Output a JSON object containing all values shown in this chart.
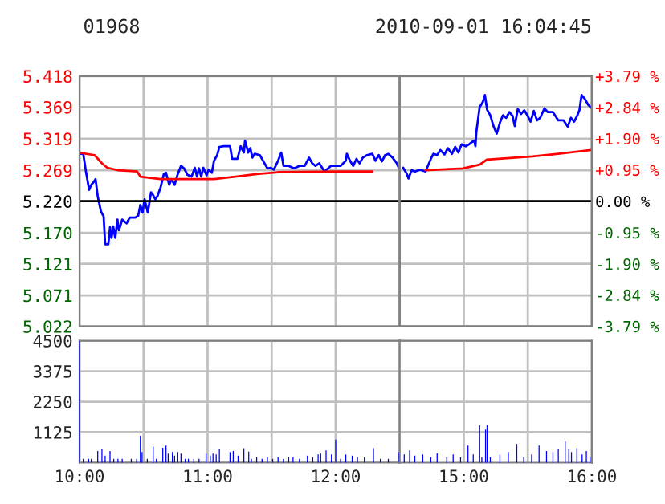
{
  "chart_data": [
    {
      "type": "line",
      "title": "01968",
      "xlim": [
        10,
        12.5
      ],
      "xticks": [
        10,
        10.5,
        11,
        11.5,
        12,
        12.5
      ],
      "ylim": [
        5.022,
        5.418
      ],
      "yticks": [
        5.022,
        5.071,
        5.121,
        {
          "value": 5.17,
          "label": "5.170"
        },
        {
          "value": 5.22,
          "label": "5.220"
        },
        5.269,
        5.319,
        5.369,
        5.418
      ],
      "tick_labels": "y",
      "grid": true,
      "ref_lines": [
        {
          "axis": "y",
          "value": 5.22,
          "color": "#000000"
        }
      ],
      "series": [
        {
          "color": "#0000ff",
          "x": [
            10,
            10.029,
            10.05,
            10.075,
            10.092,
            10.113,
            10.125,
            10.142,
            10.167,
            10.188,
            10.2,
            10.225,
            10.238,
            10.25,
            10.263,
            10.279,
            10.296,
            10.308,
            10.333,
            10.367,
            10.392,
            10.433,
            10.458,
            10.475,
            10.492,
            10.508,
            10.533,
            10.558,
            10.571,
            10.592,
            10.608,
            10.633,
            10.658,
            10.675,
            10.7,
            10.717,
            10.742,
            10.767,
            10.792,
            10.817,
            10.842,
            10.875,
            10.9,
            10.917,
            10.933,
            10.95,
            10.967,
            10.992,
            11.008,
            11.033,
            11.05,
            11.075,
            11.092,
            11.125,
            11.175,
            11.192,
            11.233,
            11.258,
            11.283,
            11.292,
            11.317,
            11.333,
            11.35,
            11.367,
            11.408,
            11.433,
            11.467,
            11.492,
            11.517,
            11.55,
            11.575,
            11.592,
            11.633,
            11.675,
            11.717,
            11.758,
            11.792,
            11.817,
            11.842,
            11.872,
            11.913,
            11.963,
            12.038,
            12.079,
            12.087,
            12.112,
            12.137,
            12.162,
            12.187,
            12.212,
            12.245,
            12.286,
            12.311,
            12.336,
            12.361,
            12.386,
            12.411,
            12.444,
            12.477,
            12.494
          ],
          "values": [
            5.295,
            5.295,
            5.267,
            5.238,
            5.246,
            5.251,
            5.255,
            5.228,
            5.204,
            5.196,
            5.152,
            5.152,
            5.179,
            5.162,
            5.18,
            5.162,
            5.191,
            5.174,
            5.191,
            5.185,
            5.194,
            5.194,
            5.197,
            5.214,
            5.202,
            5.223,
            5.202,
            5.234,
            5.231,
            5.223,
            5.228,
            5.242,
            5.263,
            5.265,
            5.246,
            5.255,
            5.246,
            5.263,
            5.276,
            5.272,
            5.262,
            5.259,
            5.273,
            5.259,
            5.272,
            5.259,
            5.273,
            5.261,
            5.27,
            5.265,
            5.284,
            5.293,
            5.306,
            5.307,
            5.307,
            5.287,
            5.287,
            5.307,
            5.297,
            5.316,
            5.297,
            5.304,
            5.289,
            5.295,
            5.293,
            5.284,
            5.272,
            5.273,
            5.27,
            5.284,
            5.297,
            5.276,
            5.276,
            5.272,
            5.276,
            5.276,
            5.289,
            5.28,
            5.276,
            5.28,
            5.267,
            5.276,
            5.276,
            5.284,
            5.295,
            5.284,
            5.276,
            5.287,
            5.28,
            5.289,
            5.293,
            5.295,
            5.284,
            5.293,
            5.283,
            5.293,
            5.295,
            5.289,
            5.28,
            5.272
          ]
        },
        {
          "color": "#ff0000",
          "x": [
            10,
            10.05,
            10.117,
            10.175,
            10.217,
            10.3,
            10.45,
            10.475,
            10.55,
            10.633,
            11.05,
            11.217,
            11.383,
            11.55,
            12.008,
            12.286
          ],
          "values": [
            5.297,
            5.295,
            5.293,
            5.28,
            5.273,
            5.269,
            5.267,
            5.259,
            5.257,
            5.255,
            5.255,
            5.259,
            5.263,
            5.266,
            5.267,
            5.267
          ]
        }
      ]
    },
    {
      "type": "line",
      "subtitle": "2010-09-01 16:04:45",
      "xlim": [
        14.5,
        16
      ],
      "xticks": [
        15,
        15.5,
        16
      ],
      "ylim": [
        5.022,
        5.418
      ],
      "yticks": [
        5.022,
        5.071,
        5.121,
        5.17,
        5.22,
        5.269,
        5.319,
        5.369,
        5.418
      ],
      "y2lim": [
        -3.79,
        3.79
      ],
      "y2ticks": [
        {
          "value": -3.79,
          "label": "-3.79 %"
        },
        {
          "value": -2.84,
          "label": "-2.84 %"
        },
        {
          "value": -1.9,
          "label": "-1.90 %"
        },
        {
          "value": -0.95,
          "label": "-0.95 %"
        },
        {
          "value": 0,
          "label": "0.00 %"
        },
        {
          "value": 0.95,
          "label": "+0.95 %"
        },
        {
          "value": 1.9,
          "label": "+1.90 %"
        },
        {
          "value": 2.84,
          "label": "+2.84 %"
        },
        {
          "value": 3.79,
          "label": "+3.79 %"
        }
      ],
      "tick_labels": false,
      "grid": true,
      "ref_lines": [
        {
          "axis": "y",
          "value": 5.22,
          "color": "#000000"
        }
      ],
      "series": [
        {
          "color": "#0000ff",
          "x": [
            14.527,
            14.556,
            14.568,
            14.593,
            14.618,
            14.66,
            14.701,
            14.743,
            14.763,
            14.792,
            14.817,
            14.85,
            14.875,
            14.908,
            14.933,
            14.958,
            14.983,
            15.016,
            15.041,
            15.066,
            15.083,
            15.091,
            15.099,
            15.124,
            15.149,
            15.165,
            15.182,
            15.207,
            15.232,
            15.257,
            15.282,
            15.306,
            15.331,
            15.356,
            15.381,
            15.398,
            15.422,
            15.447,
            15.472,
            15.497,
            15.522,
            15.547,
            15.572,
            15.597,
            15.63,
            15.655,
            15.696,
            15.738,
            15.779,
            15.812,
            15.837,
            15.862,
            15.887,
            15.903,
            15.92,
            15.945,
            15.97,
            15.995
          ],
          "values": [
            5.273,
            5.263,
            5.256,
            5.269,
            5.267,
            5.27,
            5.267,
            5.287,
            5.295,
            5.293,
            5.301,
            5.294,
            5.304,
            5.295,
            5.306,
            5.297,
            5.31,
            5.307,
            5.31,
            5.314,
            5.316,
            5.307,
            5.331,
            5.369,
            5.377,
            5.388,
            5.365,
            5.356,
            5.339,
            5.327,
            5.344,
            5.356,
            5.352,
            5.361,
            5.355,
            5.339,
            5.366,
            5.358,
            5.364,
            5.356,
            5.346,
            5.363,
            5.348,
            5.352,
            5.367,
            5.361,
            5.361,
            5.348,
            5.348,
            5.338,
            5.352,
            5.346,
            5.356,
            5.364,
            5.388,
            5.382,
            5.373,
            5.368
          ]
        },
        {
          "color": "#ff0000",
          "x": [
            14.701,
            14.992,
            15.124,
            15.182,
            15.538,
            15.738,
            15.995
          ],
          "values": [
            5.269,
            5.272,
            5.278,
            5.286,
            5.291,
            5.295,
            5.301
          ]
        }
      ]
    },
    {
      "type": "bar",
      "color": "#0000ff",
      "xlim": [
        10,
        12.5
      ],
      "grid": true,
      "xticks": [
        {
          "value": 10,
          "label": "10:00"
        },
        {
          "value": 10.5,
          "label": null
        },
        {
          "value": 11,
          "label": "11:00"
        },
        {
          "value": 11.5,
          "label": null
        },
        {
          "value": 12,
          "label": "12:00"
        },
        {
          "value": 12.5,
          "label": null
        }
      ],
      "ylim": [
        0,
        4500
      ],
      "yticks": [
        {
          "value": 0,
          "label": null
        },
        1125,
        2250,
        3375,
        4500
      ],
      "x": [
        10,
        10.029,
        10.071,
        10.092,
        10.142,
        10.175,
        10.2,
        10.238,
        10.267,
        10.3,
        10.333,
        10.404,
        10.446,
        10.475,
        10.488,
        10.529,
        10.575,
        10.6,
        10.65,
        10.675,
        10.692,
        10.725,
        10.742,
        10.767,
        10.792,
        10.825,
        10.85,
        10.892,
        10.933,
        10.988,
        11.021,
        11.042,
        11.067,
        11.092,
        11.175,
        11.2,
        11.238,
        11.283,
        11.321,
        11.342,
        11.383,
        11.425,
        11.467,
        11.508,
        11.55,
        11.592,
        11.633,
        11.667,
        11.717,
        11.779,
        11.821,
        11.863,
        11.883,
        11.925,
        11.967,
        12.0,
        12.038,
        12.079,
        12.129,
        12.17,
        12.224,
        12.295,
        12.349,
        12.411,
        12.494
      ],
      "values": [
        4490,
        140,
        140,
        140,
        430,
        490,
        260,
        430,
        140,
        140,
        140,
        140,
        140,
        990,
        390,
        140,
        590,
        140,
        550,
        630,
        330,
        390,
        260,
        390,
        330,
        140,
        140,
        140,
        140,
        330,
        260,
        330,
        300,
        490,
        390,
        430,
        260,
        530,
        410,
        140,
        200,
        140,
        200,
        140,
        200,
        140,
        200,
        200,
        140,
        260,
        200,
        300,
        330,
        450,
        300,
        850,
        140,
        300,
        260,
        200,
        200,
        530,
        140,
        140,
        390
      ]
    },
    {
      "type": "bar",
      "color": "#0000ff",
      "xlim": [
        14.5,
        16
      ],
      "grid": true,
      "tick_labels": "x",
      "xticks": [
        {
          "value": 15,
          "label": "15:00"
        },
        {
          "value": 15.5,
          "label": null
        },
        {
          "value": 16,
          "label": "16:00"
        }
      ],
      "ylim": [
        0,
        4500
      ],
      "yticks": [
        1125,
        2250,
        3375,
        4500
      ],
      "x": [
        14.535,
        14.577,
        14.618,
        14.68,
        14.743,
        14.792,
        14.867,
        14.917,
        14.975,
        15.033,
        15.074,
        15.124,
        15.141,
        15.17,
        15.182,
        15.207,
        15.282,
        15.348,
        15.414,
        15.468,
        15.53,
        15.588,
        15.646,
        15.696,
        15.738,
        15.792,
        15.82,
        15.841,
        15.883,
        15.924,
        15.957,
        15.986
      ],
      "values": [
        300,
        450,
        260,
        300,
        200,
        340,
        200,
        300,
        200,
        630,
        300,
        1380,
        200,
        1220,
        1380,
        200,
        300,
        390,
        690,
        200,
        300,
        630,
        430,
        390,
        490,
        790,
        490,
        390,
        530,
        300,
        430,
        200
      ]
    }
  ]
}
